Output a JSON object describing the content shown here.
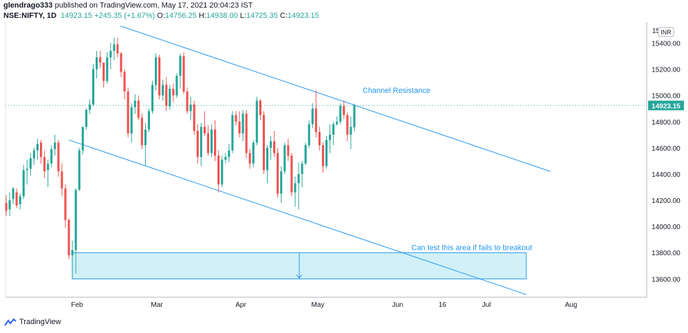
{
  "header": {
    "author": "glendrago333",
    "published_text": "published on TradingView.com, May 17, 2021 20:04:23 IST",
    "symbol": "NSE:NIFTY, 1D",
    "last": "14923.15",
    "change": "+245.35 (+1.67%)",
    "o_label": "O:",
    "o_value": "14756.25",
    "h_label": "H:",
    "h_value": "14938.00",
    "l_label": "L:",
    "l_value": "14725.35",
    "c_label": "C:",
    "c_value": "14923.15"
  },
  "footer": {
    "brand": "TradingView"
  },
  "colors": {
    "up": "#26a69a",
    "down": "#ef5350",
    "line": "#2196f3",
    "zone": "#d1f0f7",
    "price_label": "#26a69a"
  },
  "chart_data": {
    "type": "candlestick",
    "currency": "INR",
    "y_ticks": [
      13600,
      13800,
      14000,
      14200,
      14400,
      14600,
      14800,
      15000,
      15200,
      15400
    ],
    "y_tick_labels": [
      "13600.00",
      "13800.00",
      "14000.00",
      "14200.00",
      "14400.00",
      "14600.00",
      "14800.00",
      "15000.00",
      "15200.00",
      "15400.00"
    ],
    "y_top_label": "15",
    "ylim": [
      13460,
      15560
    ],
    "x_labels": [
      "Feb",
      "Mar",
      "Apr",
      "May",
      "Jun",
      "16",
      "Jul",
      "Aug"
    ],
    "last_price": 14923.15,
    "last_price_label": "14923.15",
    "candles": [
      {
        "o": 14180,
        "h": 14240,
        "l": 14080,
        "c": 14120
      },
      {
        "o": 14130,
        "h": 14260,
        "l": 14080,
        "c": 14200
      },
      {
        "o": 14210,
        "h": 14300,
        "l": 14170,
        "c": 14290
      },
      {
        "o": 14260,
        "h": 14290,
        "l": 14140,
        "c": 14160
      },
      {
        "o": 14170,
        "h": 14250,
        "l": 14130,
        "c": 14230
      },
      {
        "o": 14230,
        "h": 14470,
        "l": 14210,
        "c": 14430
      },
      {
        "o": 14430,
        "h": 14510,
        "l": 14320,
        "c": 14440
      },
      {
        "o": 14440,
        "h": 14560,
        "l": 14390,
        "c": 14520
      },
      {
        "o": 14520,
        "h": 14600,
        "l": 14470,
        "c": 14580
      },
      {
        "o": 14580,
        "h": 14670,
        "l": 14510,
        "c": 14630
      },
      {
        "o": 14640,
        "h": 14660,
        "l": 14480,
        "c": 14530
      },
      {
        "o": 14530,
        "h": 14580,
        "l": 14370,
        "c": 14420
      },
      {
        "o": 14430,
        "h": 14510,
        "l": 14300,
        "c": 14480
      },
      {
        "o": 14480,
        "h": 14620,
        "l": 14450,
        "c": 14590
      },
      {
        "o": 14590,
        "h": 14700,
        "l": 14540,
        "c": 14640
      },
      {
        "o": 14640,
        "h": 14660,
        "l": 14380,
        "c": 14420
      },
      {
        "o": 14420,
        "h": 14480,
        "l": 14230,
        "c": 14290
      },
      {
        "o": 14290,
        "h": 14320,
        "l": 13990,
        "c": 14050
      },
      {
        "o": 14050,
        "h": 14060,
        "l": 13750,
        "c": 13780
      },
      {
        "o": 13780,
        "h": 13890,
        "l": 13600,
        "c": 13820
      },
      {
        "o": 13820,
        "h": 14290,
        "l": 13640,
        "c": 14280
      },
      {
        "o": 14280,
        "h": 14600,
        "l": 14270,
        "c": 14580
      },
      {
        "o": 14580,
        "h": 14760,
        "l": 14550,
        "c": 14760
      },
      {
        "o": 14760,
        "h": 14900,
        "l": 14740,
        "c": 14890
      },
      {
        "o": 14890,
        "h": 14970,
        "l": 14860,
        "c": 14930
      },
      {
        "o": 14930,
        "h": 15240,
        "l": 14920,
        "c": 15200
      },
      {
        "o": 15200,
        "h": 15340,
        "l": 15130,
        "c": 15290
      },
      {
        "o": 15290,
        "h": 15340,
        "l": 15210,
        "c": 15250
      },
      {
        "o": 15250,
        "h": 15250,
        "l": 15060,
        "c": 15110
      },
      {
        "o": 15110,
        "h": 15330,
        "l": 15090,
        "c": 15290
      },
      {
        "o": 15290,
        "h": 15400,
        "l": 15200,
        "c": 15340
      },
      {
        "o": 15340,
        "h": 15440,
        "l": 15270,
        "c": 15390
      },
      {
        "o": 15390,
        "h": 15440,
        "l": 15290,
        "c": 15320
      },
      {
        "o": 15320,
        "h": 15330,
        "l": 15140,
        "c": 15180
      },
      {
        "o": 15180,
        "h": 15200,
        "l": 14970,
        "c": 15030
      },
      {
        "o": 15030,
        "h": 15060,
        "l": 14680,
        "c": 14710
      },
      {
        "o": 14710,
        "h": 14940,
        "l": 14640,
        "c": 14910
      },
      {
        "o": 14910,
        "h": 15010,
        "l": 14860,
        "c": 14960
      },
      {
        "o": 14960,
        "h": 15000,
        "l": 14810,
        "c": 14830
      },
      {
        "o": 14830,
        "h": 14860,
        "l": 14590,
        "c": 14620
      },
      {
        "o": 14620,
        "h": 14790,
        "l": 14460,
        "c": 14740
      },
      {
        "o": 14740,
        "h": 14900,
        "l": 14720,
        "c": 14880
      },
      {
        "o": 14880,
        "h": 15110,
        "l": 14860,
        "c": 15080
      },
      {
        "o": 15080,
        "h": 15320,
        "l": 15040,
        "c": 15290
      },
      {
        "o": 15290,
        "h": 15310,
        "l": 14970,
        "c": 15000
      },
      {
        "o": 15000,
        "h": 15120,
        "l": 14960,
        "c": 15080
      },
      {
        "o": 15080,
        "h": 15140,
        "l": 14880,
        "c": 14920
      },
      {
        "o": 14920,
        "h": 15080,
        "l": 14890,
        "c": 15050
      },
      {
        "o": 15050,
        "h": 15090,
        "l": 14950,
        "c": 15000
      },
      {
        "o": 15000,
        "h": 15170,
        "l": 14980,
        "c": 15150
      },
      {
        "o": 15150,
        "h": 15320,
        "l": 15050,
        "c": 15300
      },
      {
        "o": 15300,
        "h": 15330,
        "l": 15010,
        "c": 15030
      },
      {
        "o": 15030,
        "h": 15060,
        "l": 14860,
        "c": 14880
      },
      {
        "o": 14880,
        "h": 14990,
        "l": 14810,
        "c": 14930
      },
      {
        "o": 14930,
        "h": 14960,
        "l": 14700,
        "c": 14730
      },
      {
        "o": 14730,
        "h": 14780,
        "l": 14480,
        "c": 14530
      },
      {
        "o": 14530,
        "h": 14790,
        "l": 14460,
        "c": 14760
      },
      {
        "o": 14760,
        "h": 14880,
        "l": 14690,
        "c": 14710
      },
      {
        "o": 14710,
        "h": 14770,
        "l": 14540,
        "c": 14560
      },
      {
        "o": 14560,
        "h": 14780,
        "l": 14530,
        "c": 14740
      },
      {
        "o": 14740,
        "h": 14810,
        "l": 14500,
        "c": 14540
      },
      {
        "o": 14540,
        "h": 14580,
        "l": 14260,
        "c": 14320
      },
      {
        "o": 14320,
        "h": 14540,
        "l": 14300,
        "c": 14510
      },
      {
        "o": 14510,
        "h": 14560,
        "l": 14480,
        "c": 14530
      },
      {
        "o": 14530,
        "h": 14630,
        "l": 14490,
        "c": 14580
      },
      {
        "o": 14580,
        "h": 14880,
        "l": 14560,
        "c": 14850
      },
      {
        "o": 14850,
        "h": 14880,
        "l": 14770,
        "c": 14800
      },
      {
        "o": 14800,
        "h": 14880,
        "l": 14680,
        "c": 14710
      },
      {
        "o": 14710,
        "h": 14890,
        "l": 14650,
        "c": 14860
      },
      {
        "o": 14860,
        "h": 14890,
        "l": 14520,
        "c": 14560
      },
      {
        "o": 14560,
        "h": 14590,
        "l": 14440,
        "c": 14480
      },
      {
        "o": 14480,
        "h": 14660,
        "l": 14450,
        "c": 14640
      },
      {
        "o": 14640,
        "h": 14990,
        "l": 14620,
        "c": 14960
      },
      {
        "o": 14960,
        "h": 14970,
        "l": 14810,
        "c": 14850
      },
      {
        "o": 14850,
        "h": 14880,
        "l": 14400,
        "c": 14430
      },
      {
        "o": 14430,
        "h": 14620,
        "l": 14330,
        "c": 14600
      },
      {
        "o": 14600,
        "h": 14690,
        "l": 14510,
        "c": 14650
      },
      {
        "o": 14650,
        "h": 14730,
        "l": 14530,
        "c": 14560
      },
      {
        "o": 14560,
        "h": 14600,
        "l": 14220,
        "c": 14250
      },
      {
        "o": 14250,
        "h": 14460,
        "l": 14180,
        "c": 14420
      },
      {
        "o": 14420,
        "h": 14640,
        "l": 14400,
        "c": 14620
      },
      {
        "o": 14620,
        "h": 14670,
        "l": 14500,
        "c": 14540
      },
      {
        "o": 14540,
        "h": 14560,
        "l": 14230,
        "c": 14260
      },
      {
        "o": 14260,
        "h": 14380,
        "l": 14150,
        "c": 14330
      },
      {
        "o": 14330,
        "h": 14490,
        "l": 14130,
        "c": 14400
      },
      {
        "o": 14400,
        "h": 14500,
        "l": 14300,
        "c": 14480
      },
      {
        "o": 14480,
        "h": 14640,
        "l": 14470,
        "c": 14620
      },
      {
        "o": 14620,
        "h": 14810,
        "l": 14600,
        "c": 14780
      },
      {
        "o": 14780,
        "h": 14940,
        "l": 14750,
        "c": 14900
      },
      {
        "o": 14900,
        "h": 15040,
        "l": 14680,
        "c": 14720
      },
      {
        "o": 14720,
        "h": 14760,
        "l": 14580,
        "c": 14620
      },
      {
        "o": 14620,
        "h": 14640,
        "l": 14410,
        "c": 14460
      },
      {
        "o": 14460,
        "h": 14690,
        "l": 14440,
        "c": 14660
      },
      {
        "o": 14660,
        "h": 14780,
        "l": 14560,
        "c": 14700
      },
      {
        "o": 14700,
        "h": 14800,
        "l": 14620,
        "c": 14780
      },
      {
        "o": 14780,
        "h": 14840,
        "l": 14770,
        "c": 14800
      },
      {
        "o": 14800,
        "h": 14940,
        "l": 14780,
        "c": 14920
      },
      {
        "o": 14920,
        "h": 14960,
        "l": 14820,
        "c": 14850
      },
      {
        "o": 14850,
        "h": 14870,
        "l": 14650,
        "c": 14700
      },
      {
        "o": 14700,
        "h": 14840,
        "l": 14590,
        "c": 14760
      },
      {
        "o": 14756.25,
        "h": 14938,
        "l": 14725.35,
        "c": 14923.15
      }
    ],
    "channel_upper": {
      "x1": 175,
      "y1": 15530,
      "x2": 800,
      "y2": 14420
    },
    "channel_lower": {
      "x1": 100,
      "y1": 14660,
      "x2": 765,
      "y2": 13480
    },
    "zone": {
      "x1": 105,
      "x2": 765,
      "top": 13800,
      "bottom": 13600
    },
    "annotations": [
      {
        "text": "Channel Resistance",
        "x": 527,
        "y": 15040
      },
      {
        "text": "Can test this area if fails to breakout",
        "x": 598,
        "y": 13840
      }
    ]
  }
}
